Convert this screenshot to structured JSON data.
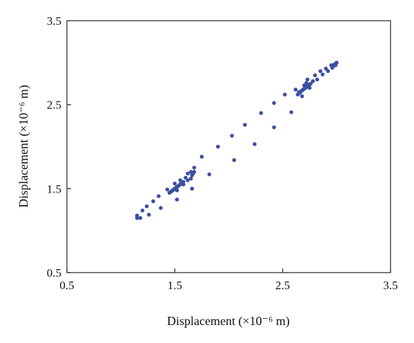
{
  "chart_data": {
    "type": "scatter",
    "xlabel": "Displacement (×10⁻⁶ m)",
    "ylabel": "Displacement (×10⁻⁶ m)",
    "xlim": [
      0.5,
      3.5
    ],
    "ylim": [
      0.5,
      3.5
    ],
    "xticks": [
      "0.5",
      "1.5",
      "2.5",
      "3.5"
    ],
    "yticks": [
      "0.5",
      "1.5",
      "2.5",
      "3.5"
    ],
    "xtick_values": [
      0.5,
      1.5,
      2.5,
      3.5
    ],
    "ytick_values": [
      0.5,
      1.5,
      2.5,
      3.5
    ],
    "grid": false,
    "marker_color": "#3d4fa3",
    "series": [
      {
        "points": [
          [
            1.15,
            1.15
          ],
          [
            1.15,
            1.18
          ],
          [
            1.18,
            1.15
          ],
          [
            1.2,
            1.24
          ],
          [
            1.24,
            1.29
          ],
          [
            1.26,
            1.19
          ],
          [
            1.3,
            1.35
          ],
          [
            1.35,
            1.41
          ],
          [
            1.37,
            1.27
          ],
          [
            1.43,
            1.49
          ],
          [
            1.45,
            1.45
          ],
          [
            1.46,
            1.46
          ],
          [
            1.47,
            1.47
          ],
          [
            1.48,
            1.48
          ],
          [
            1.49,
            1.49
          ],
          [
            1.5,
            1.5
          ],
          [
            1.51,
            1.51
          ],
          [
            1.52,
            1.52
          ],
          [
            1.53,
            1.53
          ],
          [
            1.54,
            1.54
          ],
          [
            1.55,
            1.55
          ],
          [
            1.56,
            1.56
          ],
          [
            1.57,
            1.57
          ],
          [
            1.58,
            1.58
          ],
          [
            1.5,
            1.56
          ],
          [
            1.52,
            1.48
          ],
          [
            1.55,
            1.6
          ],
          [
            1.58,
            1.55
          ],
          [
            1.6,
            1.63
          ],
          [
            1.62,
            1.6
          ],
          [
            1.62,
            1.68
          ],
          [
            1.65,
            1.62
          ],
          [
            1.65,
            1.7
          ],
          [
            1.66,
            1.66
          ],
          [
            1.67,
            1.68
          ],
          [
            1.68,
            1.7
          ],
          [
            1.68,
            1.75
          ],
          [
            1.66,
            1.5
          ],
          [
            1.52,
            1.37
          ],
          [
            1.75,
            1.88
          ],
          [
            1.82,
            1.67
          ],
          [
            1.9,
            2.0
          ],
          [
            2.03,
            2.13
          ],
          [
            2.05,
            1.84
          ],
          [
            2.15,
            2.26
          ],
          [
            2.24,
            2.03
          ],
          [
            2.3,
            2.4
          ],
          [
            2.42,
            2.52
          ],
          [
            2.42,
            2.23
          ],
          [
            2.52,
            2.62
          ],
          [
            2.58,
            2.41
          ],
          [
            2.62,
            2.68
          ],
          [
            2.64,
            2.62
          ],
          [
            2.65,
            2.65
          ],
          [
            2.66,
            2.64
          ],
          [
            2.67,
            2.66
          ],
          [
            2.68,
            2.67
          ],
          [
            2.69,
            2.68
          ],
          [
            2.7,
            2.69
          ],
          [
            2.71,
            2.7
          ],
          [
            2.72,
            2.71
          ],
          [
            2.73,
            2.72
          ],
          [
            2.74,
            2.73
          ],
          [
            2.75,
            2.74
          ],
          [
            2.76,
            2.75
          ],
          [
            2.68,
            2.6
          ],
          [
            2.7,
            2.73
          ],
          [
            2.72,
            2.76
          ],
          [
            2.73,
            2.8
          ],
          [
            2.75,
            2.7
          ],
          [
            2.78,
            2.78
          ],
          [
            2.8,
            2.85
          ],
          [
            2.82,
            2.8
          ],
          [
            2.85,
            2.9
          ],
          [
            2.87,
            2.86
          ],
          [
            2.9,
            2.93
          ],
          [
            2.92,
            2.9
          ],
          [
            2.95,
            2.97
          ],
          [
            2.96,
            2.94
          ],
          [
            2.97,
            2.96
          ],
          [
            2.98,
            2.98
          ],
          [
            2.99,
            2.99
          ],
          [
            3.0,
            3.0
          ],
          [
            2.99,
            2.97
          ]
        ]
      }
    ]
  }
}
